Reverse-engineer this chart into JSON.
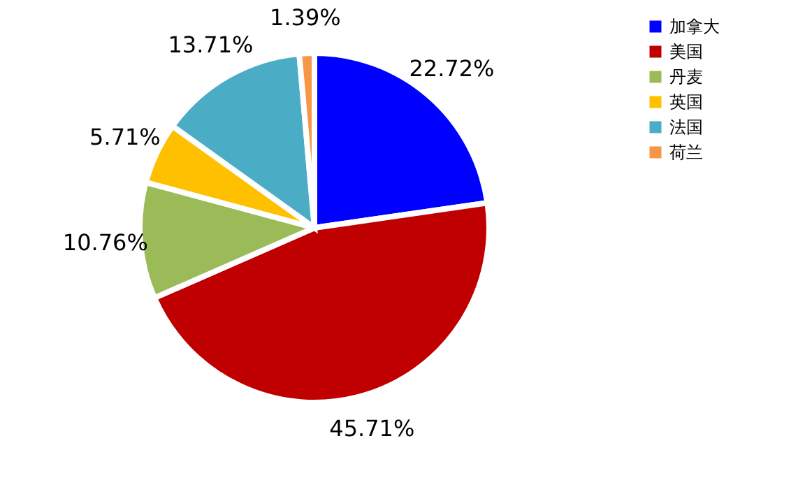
{
  "chart_data": {
    "type": "pie",
    "categories": [
      "加拿大",
      "美国",
      "丹麦",
      "英国",
      "法国",
      "荷兰"
    ],
    "values": [
      22.72,
      45.71,
      10.76,
      5.71,
      13.71,
      1.39
    ],
    "colors": [
      "#0000ff",
      "#c00000",
      "#9bbb59",
      "#ffc000",
      "#4bacc6",
      "#f79646"
    ],
    "value_labels": [
      "22.72%",
      "45.71%",
      "10.76%",
      "5.71%",
      "13.71%",
      "1.39%"
    ],
    "legend": "right"
  }
}
